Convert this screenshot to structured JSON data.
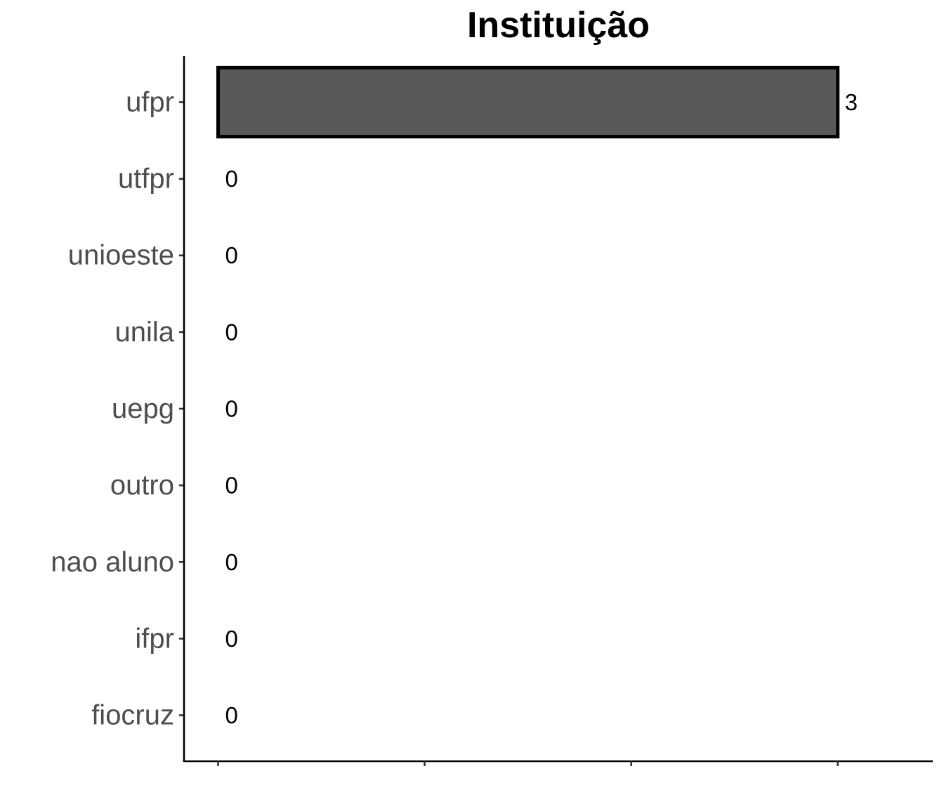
{
  "chart_data": {
    "type": "bar",
    "orientation": "horizontal",
    "title": "Instituição",
    "xlabel": "",
    "ylabel": "",
    "categories": [
      "ufpr",
      "utfpr",
      "unioeste",
      "unila",
      "uepg",
      "outro",
      "nao aluno",
      "ifpr",
      "fiocruz"
    ],
    "values": [
      3,
      0,
      0,
      0,
      0,
      0,
      0,
      0,
      0
    ],
    "data_labels": [
      "3",
      "0",
      "0",
      "0",
      "0",
      "0",
      "0",
      "0",
      "0"
    ],
    "xlim": [
      -0.165,
      3.46
    ],
    "x_ticks": [
      0,
      1,
      2,
      3
    ],
    "x_tick_labels_shown": false,
    "grid": false,
    "legend": "none",
    "colors": {
      "bar_fill": "#595959",
      "bar_outline": "#000000",
      "axis": "#000000",
      "tick_label": "#4d4d4d",
      "title": "#000000"
    }
  }
}
